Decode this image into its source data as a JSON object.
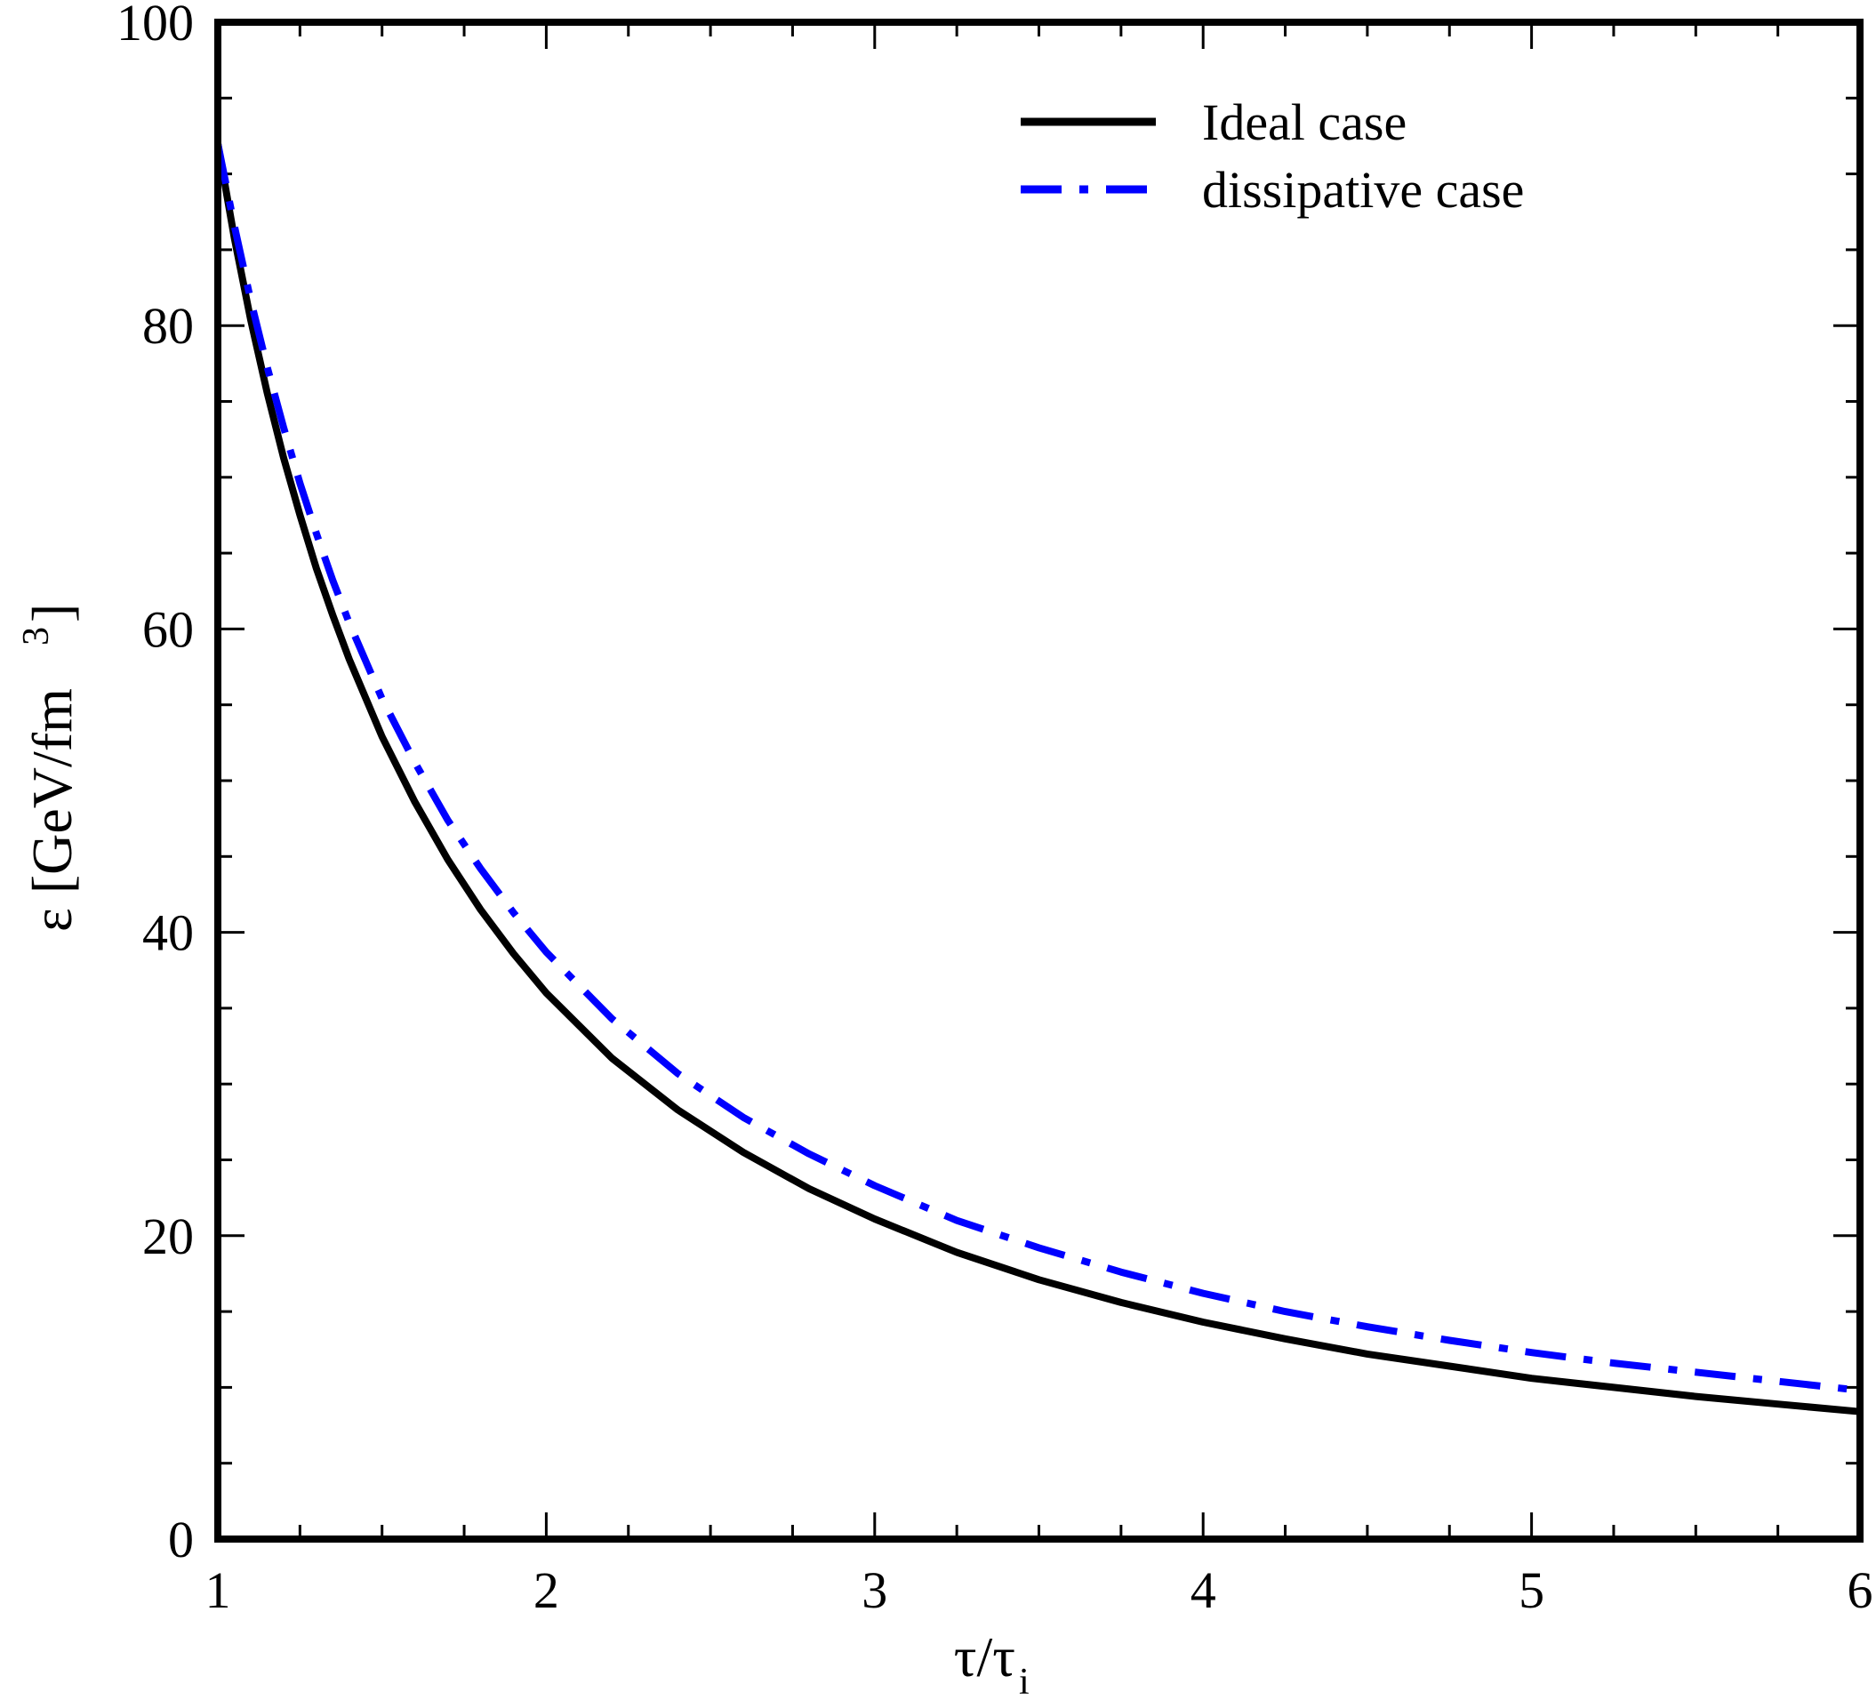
{
  "chart_data": {
    "type": "line",
    "xlabel": "τ/τ",
    "xlabel_sub": "i",
    "ylabel": "ε [GeV/fm",
    "ylabel_sup": "3",
    "ylabel_close": "]",
    "xlim": [
      1,
      6
    ],
    "ylim": [
      0,
      100
    ],
    "x_ticks": [
      1,
      2,
      3,
      4,
      5,
      6
    ],
    "y_ticks": [
      0,
      20,
      40,
      60,
      80,
      100
    ],
    "x_minor_step": 0.25,
    "y_minor_step": 5,
    "grid": false,
    "legend_position": "top-right",
    "series": [
      {
        "name": "Ideal case",
        "color": "#000000",
        "style": "solid",
        "x": [
          1.0,
          1.05,
          1.1,
          1.15,
          1.2,
          1.25,
          1.3,
          1.35,
          1.4,
          1.5,
          1.6,
          1.7,
          1.8,
          1.9,
          2.0,
          2.2,
          2.4,
          2.6,
          2.8,
          3.0,
          3.25,
          3.5,
          3.75,
          4.0,
          4.25,
          4.5,
          4.75,
          5.0,
          5.25,
          5.5,
          5.75,
          6.0
        ],
        "y": [
          92.0,
          85.8,
          80.4,
          75.6,
          71.3,
          67.5,
          64.0,
          60.9,
          58.0,
          52.9,
          48.6,
          44.8,
          41.5,
          38.6,
          36.0,
          31.7,
          28.3,
          25.5,
          23.1,
          21.1,
          18.9,
          17.1,
          15.6,
          14.3,
          13.2,
          12.2,
          11.4,
          10.6,
          10.0,
          9.4,
          8.9,
          8.4
        ]
      },
      {
        "name": "dissipative case",
        "color": "#0000ff",
        "style": "dash-dot",
        "x": [
          1.0,
          1.05,
          1.1,
          1.15,
          1.2,
          1.25,
          1.3,
          1.35,
          1.4,
          1.5,
          1.6,
          1.7,
          1.8,
          1.9,
          2.0,
          2.2,
          2.4,
          2.6,
          2.8,
          3.0,
          3.25,
          3.5,
          3.75,
          4.0,
          4.25,
          4.5,
          4.75,
          5.0,
          5.25,
          5.5,
          5.75,
          6.0
        ],
        "y": [
          92.0,
          86.6,
          81.7,
          77.3,
          73.3,
          69.6,
          66.3,
          63.2,
          60.4,
          55.4,
          51.2,
          47.4,
          44.2,
          41.3,
          38.7,
          34.3,
          30.7,
          27.8,
          25.4,
          23.3,
          21.0,
          19.2,
          17.6,
          16.2,
          15.0,
          14.0,
          13.1,
          12.3,
          11.6,
          11.0,
          10.4,
          9.8
        ]
      }
    ]
  }
}
